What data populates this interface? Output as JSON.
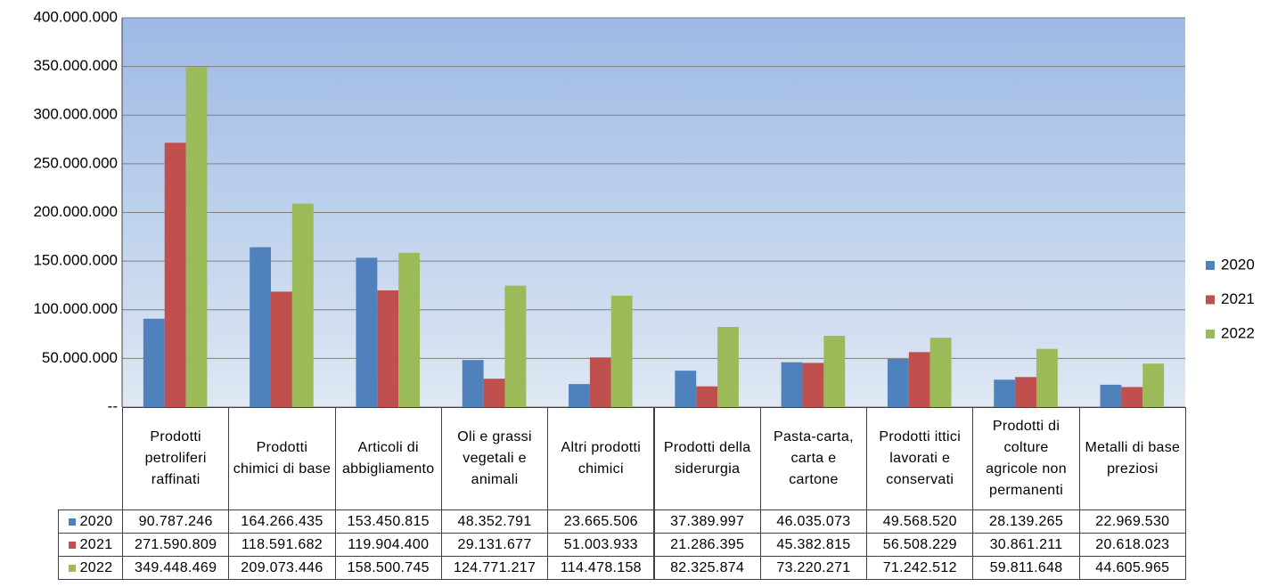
{
  "chart_data": {
    "type": "bar",
    "categories": [
      "Prodotti petroliferi raffinati",
      "Prodotti chimici di base",
      "Articoli di abbigliamento",
      "Oli e grassi vegetali e animali",
      "Altri prodotti chimici",
      "Prodotti della siderurgia",
      "Pasta-carta, carta e cartone",
      "Prodotti ittici lavorati e conservati",
      "Prodotti di colture agricole non permanenti",
      "Metalli di base preziosi"
    ],
    "series": [
      {
        "name": "2020",
        "color": "#4f81bd",
        "values": [
          90787246,
          164266435,
          153450815,
          48352791,
          23665506,
          37389997,
          46035073,
          49568520,
          28139265,
          22969530
        ],
        "value_labels": [
          "90.787.246",
          "164.266.435",
          "153.450.815",
          "48.352.791",
          "23.665.506",
          "37.389.997",
          "46.035.073",
          "49.568.520",
          "28.139.265",
          "22.969.530"
        ]
      },
      {
        "name": "2021",
        "color": "#c0504d",
        "values": [
          271590809,
          118591682,
          119904400,
          29131677,
          51003933,
          21286395,
          45382815,
          56508229,
          30861211,
          20618023
        ],
        "value_labels": [
          "271.590.809",
          "118.591.682",
          "119.904.400",
          "29.131.677",
          "51.003.933",
          "21.286.395",
          "45.382.815",
          "56.508.229",
          "30.861.211",
          "20.618.023"
        ]
      },
      {
        "name": "2022",
        "color": "#9bbb59",
        "values": [
          349448469,
          209073446,
          158500745,
          124771217,
          114478158,
          82325874,
          73220271,
          71242512,
          59811648,
          44605965
        ],
        "value_labels": [
          "349.448.469",
          "209.073.446",
          "158.500.745",
          "124.771.217",
          "114.478.158",
          "82.325.874",
          "73.220.271",
          "71.242.512",
          "59.811.648",
          "44.605.965"
        ]
      }
    ],
    "ylim": [
      0,
      400000000
    ],
    "yticks": [
      {
        "value": 0,
        "label": "--"
      },
      {
        "value": 50000000,
        "label": "50.000.000"
      },
      {
        "value": 100000000,
        "label": "100.000.000"
      },
      {
        "value": 150000000,
        "label": "150.000.000"
      },
      {
        "value": 200000000,
        "label": "200.000.000"
      },
      {
        "value": 250000000,
        "label": "250.000.000"
      },
      {
        "value": 300000000,
        "label": "300.000.000"
      },
      {
        "value": 350000000,
        "label": "350.000.000"
      },
      {
        "value": 400000000,
        "label": "400.000.000"
      }
    ],
    "grid": true,
    "legend": "right"
  }
}
